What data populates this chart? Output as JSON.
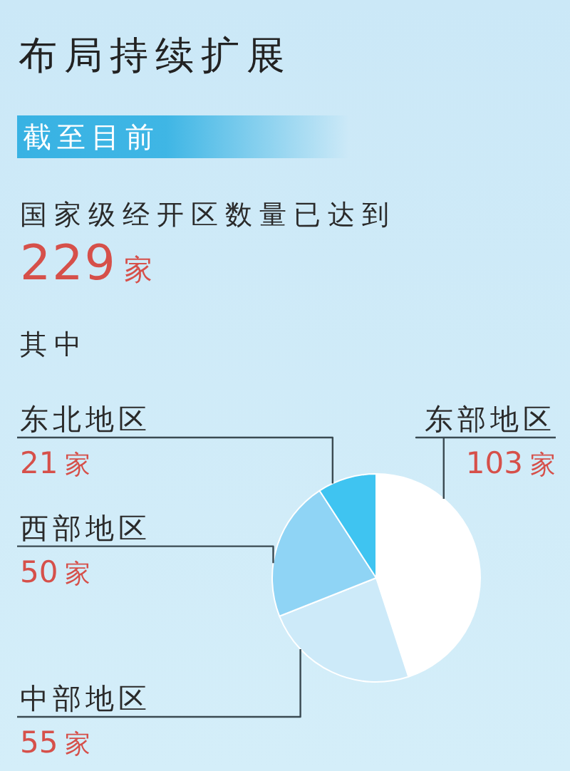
{
  "chart_data": {
    "type": "pie",
    "title": "布局持续扩展",
    "subtitle": "截至目前",
    "annotations": [
      "国家级经开区数量已达到",
      "229家",
      "其中"
    ],
    "categories": [
      "东部地区",
      "中部地区",
      "西部地区",
      "东北地区"
    ],
    "values": [
      103,
      55,
      50,
      21
    ],
    "colors": [
      "#ffffff",
      "#cdeaf9",
      "#8fd4f5",
      "#3fc4f1"
    ],
    "value_labels": [
      "103家",
      "55家",
      "50家",
      "21家"
    ],
    "legend": false
  }
}
